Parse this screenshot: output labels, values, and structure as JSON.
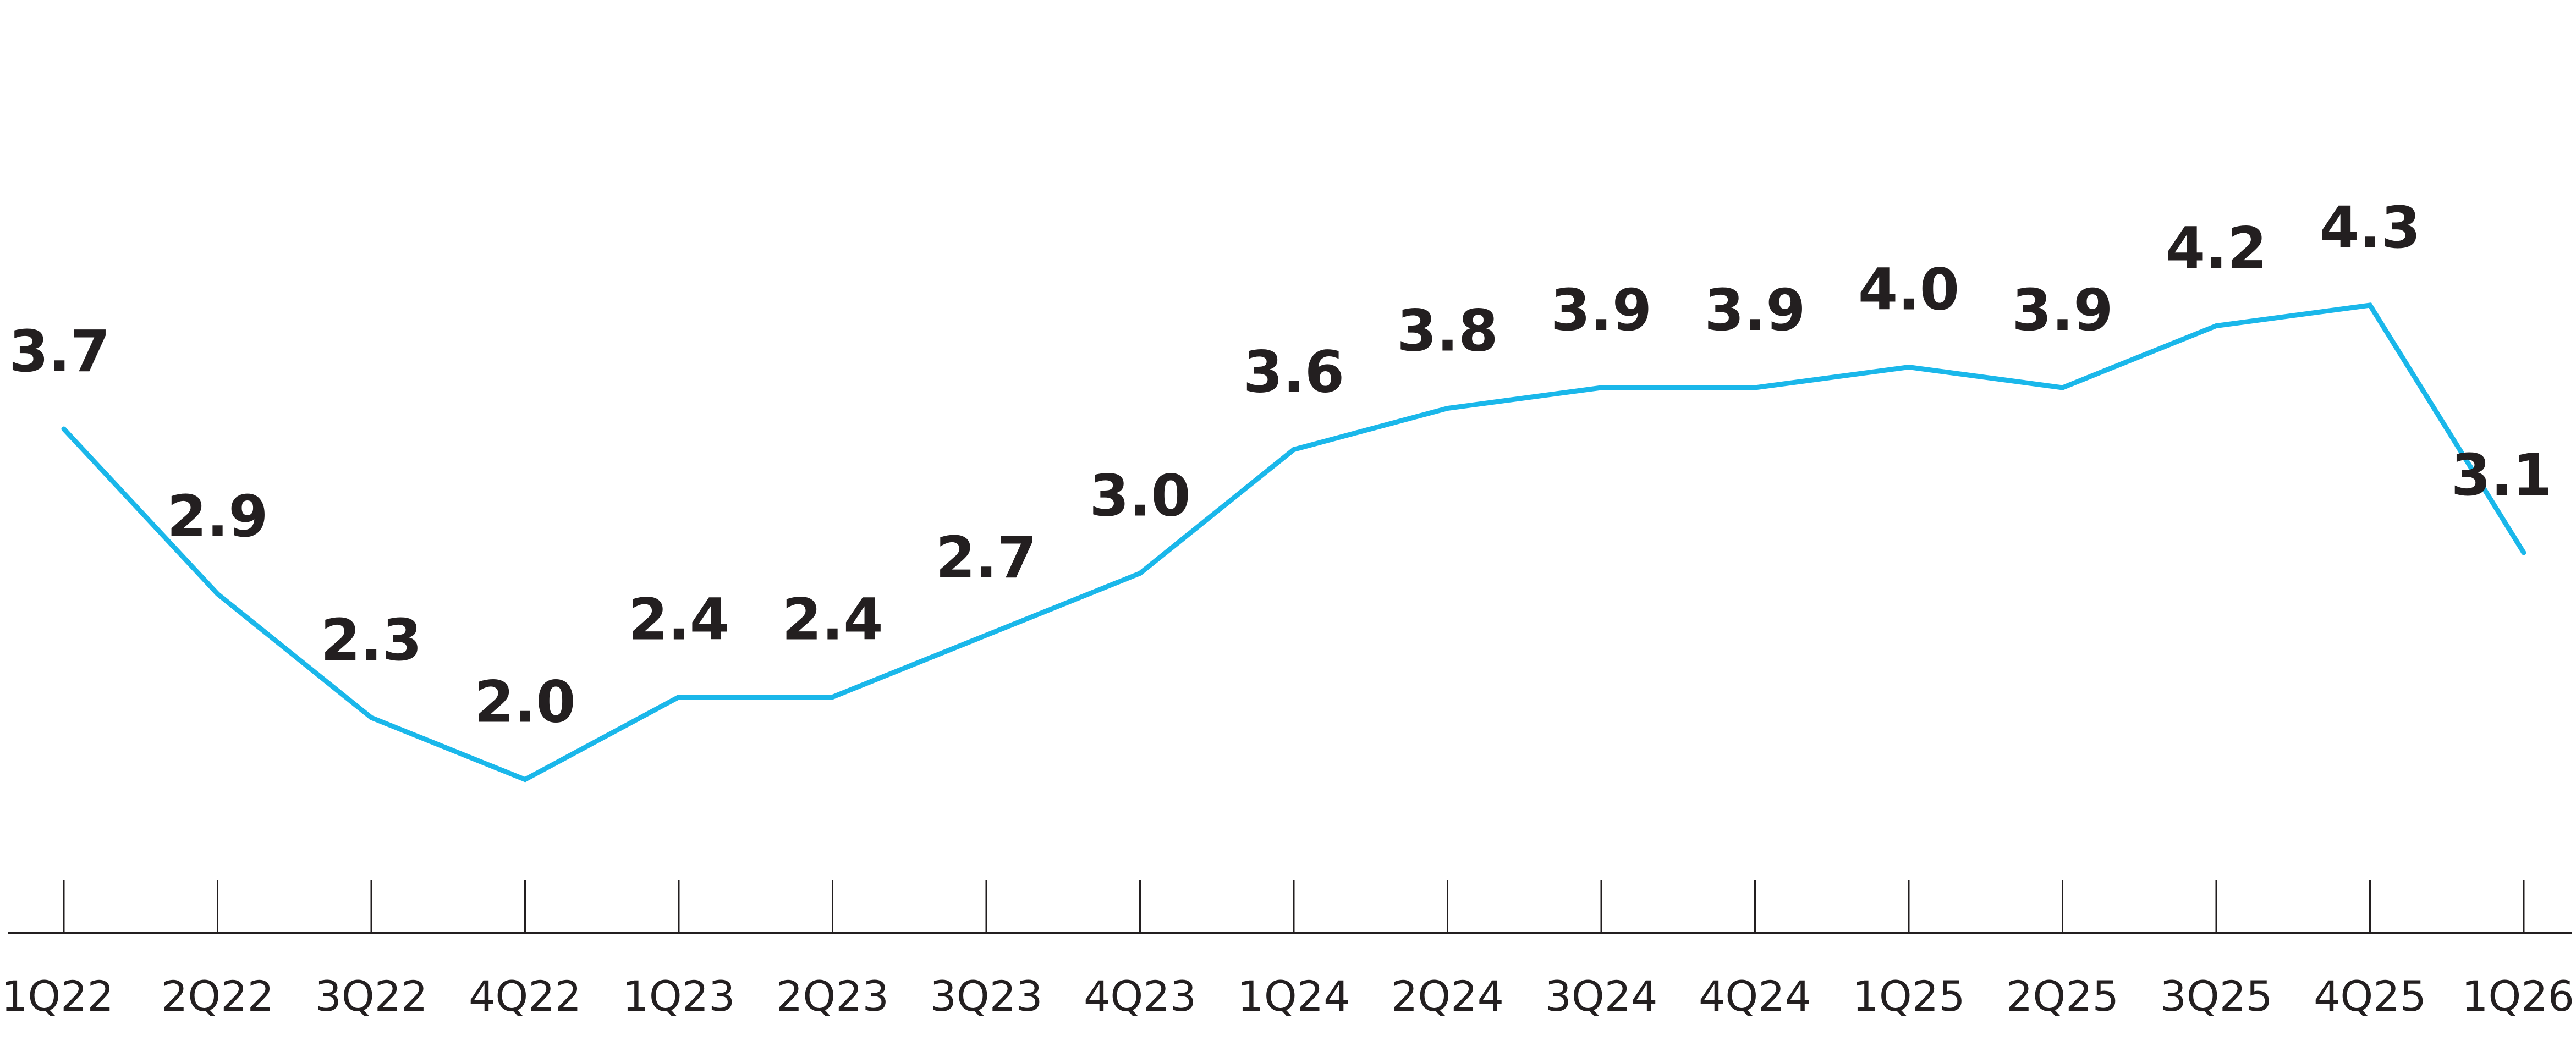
{
  "chart_data": {
    "type": "line",
    "title": "",
    "xlabel": "",
    "ylabel": "",
    "grid": false,
    "legend": "none",
    "ylim": [
      1.5,
      4.6
    ],
    "categories": [
      "1Q22",
      "2Q22",
      "3Q22",
      "4Q22",
      "1Q23",
      "2Q23",
      "3Q23",
      "4Q23",
      "1Q24",
      "2Q24",
      "3Q24",
      "4Q24",
      "1Q25",
      "2Q25",
      "3Q25",
      "4Q25",
      "1Q26"
    ],
    "series": [
      {
        "values": [
          3.7,
          2.9,
          2.3,
          2.0,
          2.4,
          2.4,
          2.7,
          3.0,
          3.6,
          3.8,
          3.9,
          3.9,
          4.0,
          3.9,
          4.2,
          4.3,
          3.1
        ],
        "labels": [
          "3.7",
          "2.9",
          "2.3",
          "2.0",
          "2.4",
          "2.4",
          "2.7",
          "3.0",
          "3.6",
          "3.8",
          "3.9",
          "3.9",
          "4.0",
          "3.9",
          "4.2",
          "4.3",
          "3.1"
        ],
        "color": "#1ab7ea"
      }
    ],
    "axis_color": "#231f20",
    "label_color": "#231f20"
  }
}
